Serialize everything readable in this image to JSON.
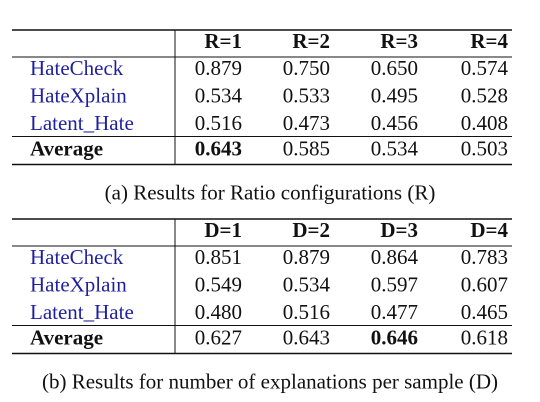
{
  "tables": [
    {
      "columns": [
        "R=1",
        "R=2",
        "R=3",
        "R=4"
      ],
      "rows": [
        {
          "name": "HateCheck",
          "values": [
            "0.879",
            "0.750",
            "0.650",
            "0.574"
          ]
        },
        {
          "name": "HateXplain",
          "values": [
            "0.534",
            "0.533",
            "0.495",
            "0.528"
          ]
        },
        {
          "name": "Latent_Hate",
          "values": [
            "0.516",
            "0.473",
            "0.456",
            "0.408"
          ]
        }
      ],
      "average": {
        "name": "Average",
        "values": [
          "0.643",
          "0.585",
          "0.534",
          "0.503"
        ],
        "bold_column": 0
      },
      "caption": "(a) Results for Ratio configurations (R)"
    },
    {
      "columns": [
        "D=1",
        "D=2",
        "D=3",
        "D=4"
      ],
      "rows": [
        {
          "name": "HateCheck",
          "values": [
            "0.851",
            "0.879",
            "0.864",
            "0.783"
          ]
        },
        {
          "name": "HateXplain",
          "values": [
            "0.549",
            "0.534",
            "0.597",
            "0.607"
          ]
        },
        {
          "name": "Latent_Hate",
          "values": [
            "0.480",
            "0.516",
            "0.477",
            "0.465"
          ]
        }
      ],
      "average": {
        "name": "Average",
        "values": [
          "0.627",
          "0.643",
          "0.646",
          "0.618"
        ],
        "bold_column": 2
      },
      "caption": "(b) Results for number of explanations per sample (D)"
    }
  ]
}
